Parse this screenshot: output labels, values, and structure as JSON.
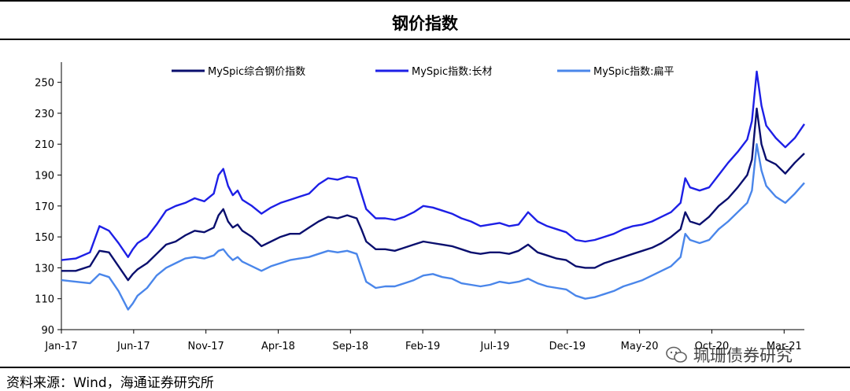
{
  "title": "钢价指数",
  "source": "资料来源：Wind，海通证券研究所",
  "watermark": "珮珊债券研究",
  "chart_data": {
    "type": "line",
    "title": "钢价指数",
    "ylim": [
      90,
      260
    ],
    "yticks": [
      90,
      110,
      130,
      150,
      170,
      190,
      210,
      230,
      250
    ],
    "xticks": [
      "Jan-17",
      "Jun-17",
      "Nov-17",
      "Apr-18",
      "Sep-18",
      "Feb-19",
      "Jul-19",
      "Dec-19",
      "May-20",
      "Oct-20",
      "Mar-21"
    ],
    "legend_position": "top",
    "series": [
      {
        "name": "MySpic综合钢价指数",
        "color": "#0a0f6e",
        "points": [
          [
            0,
            128
          ],
          [
            1.5,
            128
          ],
          [
            3,
            131
          ],
          [
            4,
            141
          ],
          [
            5,
            140
          ],
          [
            6,
            131
          ],
          [
            7,
            122
          ],
          [
            7.5,
            126
          ],
          [
            8,
            129
          ],
          [
            9,
            133
          ],
          [
            10,
            139
          ],
          [
            11,
            145
          ],
          [
            12,
            147
          ],
          [
            13,
            151
          ],
          [
            14,
            154
          ],
          [
            15,
            153
          ],
          [
            16,
            156
          ],
          [
            16.5,
            164
          ],
          [
            17,
            168
          ],
          [
            17.5,
            160
          ],
          [
            18,
            156
          ],
          [
            18.5,
            158
          ],
          [
            19,
            154
          ],
          [
            20,
            150
          ],
          [
            21,
            144
          ],
          [
            22,
            147
          ],
          [
            23,
            150
          ],
          [
            24,
            152
          ],
          [
            25,
            152
          ],
          [
            26,
            156
          ],
          [
            27,
            160
          ],
          [
            28,
            163
          ],
          [
            29,
            162
          ],
          [
            30,
            164
          ],
          [
            31,
            162
          ],
          [
            31.5,
            155
          ],
          [
            32,
            147
          ],
          [
            33,
            142
          ],
          [
            34,
            142
          ],
          [
            35,
            141
          ],
          [
            36,
            143
          ],
          [
            37,
            145
          ],
          [
            38,
            147
          ],
          [
            39,
            146
          ],
          [
            40,
            145
          ],
          [
            41,
            144
          ],
          [
            42,
            142
          ],
          [
            43,
            140
          ],
          [
            44,
            139
          ],
          [
            45,
            140
          ],
          [
            46,
            140
          ],
          [
            47,
            139
          ],
          [
            48,
            141
          ],
          [
            49,
            145
          ],
          [
            50,
            140
          ],
          [
            51,
            138
          ],
          [
            52,
            136
          ],
          [
            53,
            135
          ],
          [
            54,
            131
          ],
          [
            55,
            130
          ],
          [
            56,
            130
          ],
          [
            57,
            133
          ],
          [
            58,
            135
          ],
          [
            59,
            137
          ],
          [
            60,
            139
          ],
          [
            61,
            141
          ],
          [
            62,
            143
          ],
          [
            63,
            146
          ],
          [
            64,
            150
          ],
          [
            65,
            155
          ],
          [
            65.5,
            166
          ],
          [
            66,
            160
          ],
          [
            67,
            158
          ],
          [
            68,
            163
          ],
          [
            69,
            170
          ],
          [
            70,
            175
          ],
          [
            71,
            182
          ],
          [
            72,
            190
          ],
          [
            72.5,
            200
          ],
          [
            73,
            233
          ],
          [
            73.5,
            210
          ],
          [
            74,
            200
          ],
          [
            75,
            197
          ],
          [
            76,
            191
          ],
          [
            77,
            198
          ],
          [
            78,
            204
          ]
        ]
      },
      {
        "name": "MySpic指数:长材",
        "color": "#1d1fe6",
        "points": [
          [
            0,
            135
          ],
          [
            1.5,
            136
          ],
          [
            3,
            140
          ],
          [
            4,
            157
          ],
          [
            5,
            154
          ],
          [
            6,
            146
          ],
          [
            7,
            137
          ],
          [
            7.5,
            142
          ],
          [
            8,
            146
          ],
          [
            9,
            150
          ],
          [
            10,
            158
          ],
          [
            11,
            167
          ],
          [
            12,
            170
          ],
          [
            13,
            172
          ],
          [
            14,
            175
          ],
          [
            15,
            173
          ],
          [
            16,
            178
          ],
          [
            16.5,
            190
          ],
          [
            17,
            194
          ],
          [
            17.5,
            183
          ],
          [
            18,
            177
          ],
          [
            18.5,
            180
          ],
          [
            19,
            174
          ],
          [
            20,
            170
          ],
          [
            21,
            165
          ],
          [
            22,
            169
          ],
          [
            23,
            172
          ],
          [
            24,
            174
          ],
          [
            25,
            176
          ],
          [
            26,
            178
          ],
          [
            27,
            184
          ],
          [
            28,
            188
          ],
          [
            29,
            187
          ],
          [
            30,
            189
          ],
          [
            31,
            188
          ],
          [
            31.5,
            178
          ],
          [
            32,
            168
          ],
          [
            33,
            162
          ],
          [
            34,
            162
          ],
          [
            35,
            161
          ],
          [
            36,
            163
          ],
          [
            37,
            166
          ],
          [
            38,
            170
          ],
          [
            39,
            169
          ],
          [
            40,
            167
          ],
          [
            41,
            165
          ],
          [
            42,
            162
          ],
          [
            43,
            160
          ],
          [
            44,
            157
          ],
          [
            45,
            158
          ],
          [
            46,
            159
          ],
          [
            47,
            157
          ],
          [
            48,
            158
          ],
          [
            49,
            166
          ],
          [
            50,
            160
          ],
          [
            51,
            157
          ],
          [
            52,
            155
          ],
          [
            53,
            153
          ],
          [
            54,
            148
          ],
          [
            55,
            147
          ],
          [
            56,
            148
          ],
          [
            57,
            150
          ],
          [
            58,
            152
          ],
          [
            59,
            155
          ],
          [
            60,
            157
          ],
          [
            61,
            158
          ],
          [
            62,
            160
          ],
          [
            63,
            163
          ],
          [
            64,
            166
          ],
          [
            65,
            172
          ],
          [
            65.5,
            188
          ],
          [
            66,
            182
          ],
          [
            67,
            180
          ],
          [
            68,
            182
          ],
          [
            69,
            190
          ],
          [
            70,
            198
          ],
          [
            71,
            205
          ],
          [
            72,
            213
          ],
          [
            72.5,
            225
          ],
          [
            73,
            257
          ],
          [
            73.5,
            235
          ],
          [
            74,
            222
          ],
          [
            75,
            214
          ],
          [
            76,
            208
          ],
          [
            77,
            214
          ],
          [
            78,
            223
          ]
        ]
      },
      {
        "name": "MySpic指数:扁平",
        "color": "#4a86ea",
        "points": [
          [
            0,
            122
          ],
          [
            1.5,
            121
          ],
          [
            3,
            120
          ],
          [
            4,
            126
          ],
          [
            5,
            124
          ],
          [
            6,
            115
          ],
          [
            7,
            103
          ],
          [
            7.5,
            107
          ],
          [
            8,
            112
          ],
          [
            9,
            117
          ],
          [
            10,
            125
          ],
          [
            11,
            130
          ],
          [
            12,
            133
          ],
          [
            13,
            136
          ],
          [
            14,
            137
          ],
          [
            15,
            136
          ],
          [
            16,
            138
          ],
          [
            16.5,
            141
          ],
          [
            17,
            142
          ],
          [
            17.5,
            138
          ],
          [
            18,
            135
          ],
          [
            18.5,
            137
          ],
          [
            19,
            134
          ],
          [
            20,
            131
          ],
          [
            21,
            128
          ],
          [
            22,
            131
          ],
          [
            23,
            133
          ],
          [
            24,
            135
          ],
          [
            25,
            136
          ],
          [
            26,
            137
          ],
          [
            27,
            139
          ],
          [
            28,
            141
          ],
          [
            29,
            140
          ],
          [
            30,
            141
          ],
          [
            31,
            139
          ],
          [
            31.5,
            130
          ],
          [
            32,
            121
          ],
          [
            33,
            117
          ],
          [
            34,
            118
          ],
          [
            35,
            118
          ],
          [
            36,
            120
          ],
          [
            37,
            122
          ],
          [
            38,
            125
          ],
          [
            39,
            126
          ],
          [
            40,
            124
          ],
          [
            41,
            123
          ],
          [
            42,
            120
          ],
          [
            43,
            119
          ],
          [
            44,
            118
          ],
          [
            45,
            119
          ],
          [
            46,
            121
          ],
          [
            47,
            120
          ],
          [
            48,
            121
          ],
          [
            49,
            123
          ],
          [
            50,
            120
          ],
          [
            51,
            118
          ],
          [
            52,
            117
          ],
          [
            53,
            116
          ],
          [
            54,
            112
          ],
          [
            55,
            110
          ],
          [
            56,
            111
          ],
          [
            57,
            113
          ],
          [
            58,
            115
          ],
          [
            59,
            118
          ],
          [
            60,
            120
          ],
          [
            61,
            122
          ],
          [
            62,
            125
          ],
          [
            63,
            128
          ],
          [
            64,
            131
          ],
          [
            65,
            137
          ],
          [
            65.5,
            152
          ],
          [
            66,
            148
          ],
          [
            67,
            146
          ],
          [
            68,
            148
          ],
          [
            69,
            155
          ],
          [
            70,
            160
          ],
          [
            71,
            166
          ],
          [
            72,
            172
          ],
          [
            72.5,
            180
          ],
          [
            73,
            210
          ],
          [
            73.5,
            193
          ],
          [
            74,
            183
          ],
          [
            75,
            176
          ],
          [
            76,
            172
          ],
          [
            77,
            178
          ],
          [
            78,
            185
          ]
        ]
      }
    ]
  }
}
